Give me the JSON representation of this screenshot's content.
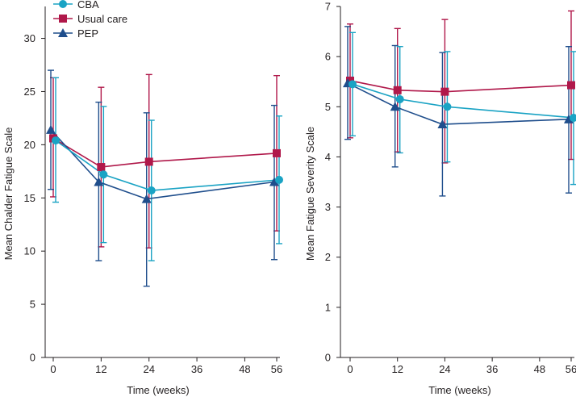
{
  "colors": {
    "cba": "#1aa3c4",
    "usual": "#b0184a",
    "pep": "#1f4e8c",
    "axis": "#231f20"
  },
  "legend": [
    {
      "key": "cba",
      "label": "CBA",
      "marker": "circle"
    },
    {
      "key": "usual",
      "label": "Usual care",
      "marker": "square"
    },
    {
      "key": "pep",
      "label": "PEP",
      "marker": "triangle"
    }
  ],
  "chart_data": [
    {
      "type": "line",
      "panel": "left",
      "xlabel": "Time (weeks)",
      "ylabel": "Mean Chalder Fatigue Scale",
      "xlim": [
        -1,
        57
      ],
      "ylim": [
        0,
        33
      ],
      "xticks": [
        0,
        12,
        24,
        36,
        48,
        56
      ],
      "yticks": [
        0,
        5,
        10,
        15,
        20,
        25,
        30
      ],
      "series": [
        {
          "name": "CBA",
          "key": "cba",
          "marker": "circle",
          "offset": 1,
          "x": [
            0,
            12,
            24,
            56
          ],
          "y": [
            20.4,
            17.2,
            15.7,
            16.7
          ],
          "lower": [
            14.6,
            10.8,
            9.1,
            10.7
          ],
          "upper": [
            26.3,
            23.6,
            22.3,
            22.7
          ]
        },
        {
          "name": "Usual care",
          "key": "usual",
          "marker": "square",
          "offset": 0,
          "x": [
            0,
            12,
            24,
            56
          ],
          "y": [
            20.6,
            17.9,
            18.4,
            19.2
          ],
          "lower": [
            15.1,
            10.4,
            10.3,
            11.9
          ],
          "upper": [
            26.3,
            25.4,
            26.6,
            26.5
          ]
        },
        {
          "name": "PEP",
          "key": "pep",
          "marker": "triangle",
          "offset": -1,
          "x": [
            0,
            12,
            24,
            56
          ],
          "y": [
            21.4,
            16.5,
            14.9,
            16.5
          ],
          "lower": [
            15.8,
            9.1,
            6.7,
            9.2
          ],
          "upper": [
            27.0,
            24.0,
            23.0,
            23.7
          ]
        }
      ]
    },
    {
      "type": "line",
      "panel": "right",
      "xlabel": "Time (weeks)",
      "ylabel": "Mean Fatigue Severity Scale",
      "xlim": [
        -1,
        57
      ],
      "ylim": [
        0,
        7
      ],
      "xticks": [
        0,
        12,
        24,
        36,
        48,
        56
      ],
      "yticks": [
        0,
        1,
        2,
        3,
        4,
        5,
        6,
        7
      ],
      "series": [
        {
          "name": "CBA",
          "key": "cba",
          "marker": "circle",
          "offset": 1,
          "x": [
            0,
            12,
            24,
            56
          ],
          "y": [
            5.45,
            5.15,
            5.0,
            4.78
          ],
          "lower": [
            4.42,
            4.08,
            3.9,
            3.45
          ],
          "upper": [
            6.48,
            6.2,
            6.1,
            6.1
          ]
        },
        {
          "name": "Usual care",
          "key": "usual",
          "marker": "square",
          "offset": 0,
          "x": [
            0,
            12,
            24,
            56
          ],
          "y": [
            5.52,
            5.33,
            5.3,
            5.43
          ],
          "lower": [
            4.38,
            4.1,
            3.88,
            3.95
          ],
          "upper": [
            6.65,
            6.56,
            6.74,
            6.91
          ]
        },
        {
          "name": "PEP",
          "key": "pep",
          "marker": "triangle",
          "offset": -1,
          "x": [
            0,
            12,
            24,
            56
          ],
          "y": [
            5.47,
            5.0,
            4.65,
            4.75
          ],
          "lower": [
            4.35,
            3.8,
            3.22,
            3.28
          ],
          "upper": [
            6.6,
            6.22,
            6.08,
            6.2
          ]
        }
      ]
    }
  ]
}
